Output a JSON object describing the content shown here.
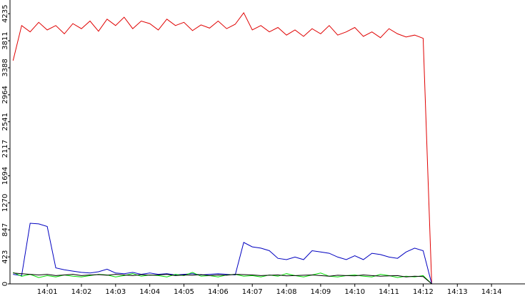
{
  "chart_data": {
    "type": "line",
    "x": [
      0,
      0.25,
      0.5,
      0.75,
      1,
      1.25,
      1.5,
      1.75,
      2,
      2.25,
      2.5,
      2.75,
      3,
      3.25,
      3.5,
      3.75,
      4,
      4.25,
      4.5,
      4.75,
      5,
      5.25,
      5.5,
      5.75,
      6,
      6.25,
      6.5,
      6.75,
      7,
      7.25,
      7.5,
      7.75,
      8,
      8.25,
      8.5,
      8.75,
      9,
      9.25,
      9.5,
      9.75,
      10,
      10.25,
      10.5,
      10.75,
      11,
      11.25,
      11.5,
      11.75,
      12,
      12.25
    ],
    "series": [
      {
        "color": "#e00000",
        "values": [
          3500,
          4050,
          3950,
          4100,
          3980,
          4050,
          3920,
          4080,
          4000,
          4120,
          3960,
          4150,
          4050,
          4180,
          4000,
          4120,
          4080,
          3980,
          4150,
          4050,
          4100,
          3970,
          4060,
          4010,
          4120,
          4000,
          4070,
          4250,
          3980,
          4050,
          3950,
          4020,
          3900,
          3980,
          3880,
          4000,
          3920,
          4050,
          3900,
          3950,
          4020,
          3880,
          3950,
          3860,
          4000,
          3920,
          3870,
          3900,
          3850,
          0
        ]
      },
      {
        "color": "#0000c0",
        "values": [
          150,
          130,
          950,
          940,
          900,
          250,
          220,
          200,
          180,
          170,
          190,
          230,
          170,
          160,
          180,
          150,
          170,
          150,
          160,
          140,
          150,
          160,
          140,
          150,
          160,
          150,
          140,
          650,
          580,
          560,
          520,
          400,
          380,
          420,
          380,
          520,
          500,
          480,
          420,
          380,
          440,
          380,
          480,
          460,
          420,
          400,
          500,
          560,
          520,
          0
        ]
      },
      {
        "color": "#00dd00",
        "values": [
          180,
          120,
          150,
          100,
          130,
          110,
          140,
          120,
          110,
          130,
          150,
          140,
          110,
          130,
          160,
          120,
          140,
          130,
          110,
          150,
          130,
          180,
          120,
          130,
          110,
          140,
          150,
          120,
          130,
          110,
          140,
          120,
          160,
          130,
          110,
          140,
          170,
          120,
          110,
          130,
          140,
          120,
          110,
          150,
          130,
          100,
          120,
          110,
          130,
          0
        ]
      },
      {
        "color": "#000000",
        "values": [
          170,
          160,
          150,
          140,
          150,
          130,
          140,
          150,
          130,
          140,
          145,
          135,
          150,
          140,
          130,
          145,
          135,
          140,
          150,
          130,
          140,
          135,
          145,
          130,
          140,
          135,
          150,
          145,
          140,
          130,
          135,
          140,
          125,
          130,
          135,
          140,
          130,
          120,
          135,
          130,
          125,
          140,
          130,
          120,
          125,
          130,
          110,
          120,
          115,
          0
        ]
      }
    ],
    "xlim": [
      -0.09,
      14.98
    ],
    "xticks": [
      {
        "value": 1,
        "label": "14:01"
      },
      {
        "value": 2,
        "label": "14:02"
      },
      {
        "value": 3,
        "label": "14:03"
      },
      {
        "value": 4,
        "label": "14:04"
      },
      {
        "value": 5,
        "label": "14:05"
      },
      {
        "value": 6,
        "label": "14:06"
      },
      {
        "value": 7,
        "label": "14:07"
      },
      {
        "value": 8,
        "label": "14:08"
      },
      {
        "value": 9,
        "label": "14:09"
      },
      {
        "value": 10,
        "label": "14:10"
      },
      {
        "value": 11,
        "label": "14:11"
      },
      {
        "value": 12,
        "label": "14:12"
      },
      {
        "value": 13,
        "label": "14:13"
      },
      {
        "value": 14,
        "label": "14:14"
      }
    ],
    "ylim": [
      0,
      4450
    ],
    "yticks": [
      0,
      423,
      847,
      1270,
      1694,
      2117,
      2541,
      2964,
      3388,
      3811,
      4235
    ]
  }
}
